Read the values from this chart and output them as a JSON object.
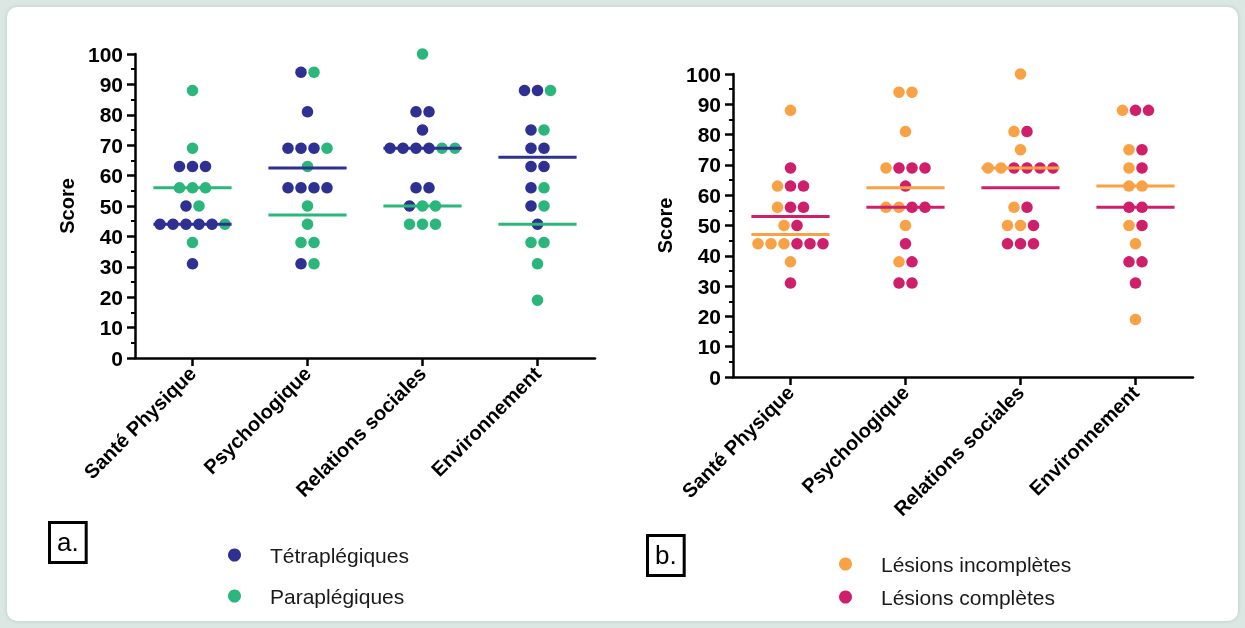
{
  "chart_data": [
    {
      "type": "scatter",
      "ylabel": "Score",
      "categories": [
        "Santé Physique",
        "Psychologique",
        "Relations sociales",
        "Environnement"
      ],
      "ylim": [
        0,
        100
      ],
      "yticks": [
        0,
        {
          "value": 5,
          "label": null
        },
        10,
        {
          "value": 15,
          "label": null
        },
        20,
        {
          "value": 25,
          "label": null
        },
        30,
        {
          "value": 35,
          "label": null
        },
        40,
        {
          "value": 45,
          "label": null
        },
        50,
        {
          "value": 55,
          "label": null
        },
        60,
        {
          "value": 65,
          "label": null
        },
        70,
        {
          "value": 75,
          "label": null
        },
        80,
        {
          "value": 85,
          "label": null
        },
        90,
        {
          "value": 95,
          "label": null
        },
        100
      ],
      "legend": "bottom",
      "marker": "circle",
      "annotations": [
        "a."
      ],
      "series": [
        {
          "name": "Tétraplégiques",
          "color": "#2e3192",
          "x": [
            "Santé Physique",
            "Santé Physique",
            "Santé Physique",
            "Santé Physique",
            "Santé Physique",
            "Santé Physique",
            "Santé Physique",
            "Santé Physique",
            "Santé Physique",
            "Santé Physique",
            "Psychologique",
            "Psychologique",
            "Psychologique",
            "Psychologique",
            "Psychologique",
            "Psychologique",
            "Psychologique",
            "Psychologique",
            "Psychologique",
            "Psychologique",
            "Relations sociales",
            "Relations sociales",
            "Relations sociales",
            "Relations sociales",
            "Relations sociales",
            "Relations sociales",
            "Relations sociales",
            "Relations sociales",
            "Relations sociales",
            "Relations sociales",
            "Environnement",
            "Environnement",
            "Environnement",
            "Environnement",
            "Environnement",
            "Environnement",
            "Environnement",
            "Environnement",
            "Environnement",
            "Environnement"
          ],
          "values": [
            63,
            63,
            63,
            50,
            44,
            44,
            44,
            44,
            44,
            31,
            94,
            81,
            69,
            69,
            69,
            56,
            56,
            56,
            56,
            31,
            81,
            81,
            75,
            69,
            69,
            69,
            69,
            56,
            56,
            50,
            88,
            88,
            75,
            69,
            69,
            63,
            63,
            56,
            50,
            44
          ]
        },
        {
          "name": "Paraplégiques",
          "color": "#2bb67b",
          "x": [
            "Santé Physique",
            "Santé Physique",
            "Santé Physique",
            "Santé Physique",
            "Santé Physique",
            "Santé Physique",
            "Santé Physique",
            "Santé Physique",
            "Psychologique",
            "Psychologique",
            "Psychologique",
            "Psychologique",
            "Psychologique",
            "Psychologique",
            "Psychologique",
            "Psychologique",
            "Relations sociales",
            "Relations sociales",
            "Relations sociales",
            "Relations sociales",
            "Relations sociales",
            "Relations sociales",
            "Relations sociales",
            "Relations sociales",
            "Environnement",
            "Environnement",
            "Environnement",
            "Environnement",
            "Environnement",
            "Environnement",
            "Environnement",
            "Environnement"
          ],
          "values": [
            88,
            69,
            56,
            56,
            56,
            50,
            44,
            38,
            94,
            69,
            63,
            50,
            44,
            38,
            38,
            31,
            100,
            69,
            69,
            50,
            50,
            44,
            44,
            44,
            88,
            75,
            56,
            50,
            38,
            38,
            31,
            19
          ]
        },
        {
          "type": "bar",
          "color": "#2e3192",
          "base": [
            44,
            62.5,
            69,
            66
          ],
          "values": [
            0,
            0,
            0,
            0
          ]
        },
        {
          "type": "bar",
          "color": "#2bb67b",
          "base": [
            56,
            47,
            50,
            44
          ],
          "values": [
            0,
            0,
            0,
            0
          ]
        }
      ]
    },
    {
      "type": "scatter",
      "ylabel": "Score",
      "categories": [
        "Santé Physique",
        "Psychologique",
        "Relations sociales",
        "Environnement"
      ],
      "ylim": [
        0,
        100
      ],
      "yticks": [
        0,
        {
          "value": 5,
          "label": null
        },
        10,
        {
          "value": 15,
          "label": null
        },
        20,
        {
          "value": 25,
          "label": null
        },
        30,
        {
          "value": 35,
          "label": null
        },
        40,
        {
          "value": 45,
          "label": null
        },
        50,
        {
          "value": 55,
          "label": null
        },
        60,
        {
          "value": 65,
          "label": null
        },
        70,
        {
          "value": 75,
          "label": null
        },
        80,
        {
          "value": 85,
          "label": null
        },
        90,
        {
          "value": 95,
          "label": null
        },
        100
      ],
      "legend": "bottom",
      "marker": "circle",
      "annotations": [
        "b."
      ],
      "series": [
        {
          "name": "Lésions incomplètes",
          "color": "#f8a145",
          "x": [
            "Santé Physique",
            "Santé Physique",
            "Santé Physique",
            "Santé Physique",
            "Santé Physique",
            "Santé Physique",
            "Santé Physique",
            "Santé Physique",
            "Psychologique",
            "Psychologique",
            "Psychologique",
            "Psychologique",
            "Psychologique",
            "Psychologique",
            "Psychologique",
            "Psychologique",
            "Relations sociales",
            "Relations sociales",
            "Relations sociales",
            "Relations sociales",
            "Relations sociales",
            "Relations sociales",
            "Relations sociales",
            "Relations sociales",
            "Environnement",
            "Environnement",
            "Environnement",
            "Environnement",
            "Environnement",
            "Environnement",
            "Environnement",
            "Environnement"
          ],
          "values": [
            88,
            63,
            56,
            50,
            44,
            44,
            44,
            38,
            94,
            94,
            81,
            69,
            56,
            56,
            50,
            38,
            100,
            81,
            75,
            69,
            69,
            56,
            50,
            50,
            88,
            75,
            69,
            63,
            63,
            50,
            44,
            19
          ]
        },
        {
          "name": "Lésions complètes",
          "color": "#cf1f6b",
          "x": [
            "Santé Physique",
            "Santé Physique",
            "Santé Physique",
            "Santé Physique",
            "Santé Physique",
            "Santé Physique",
            "Santé Physique",
            "Santé Physique",
            "Santé Physique",
            "Santé Physique",
            "Psychologique",
            "Psychologique",
            "Psychologique",
            "Psychologique",
            "Psychologique",
            "Psychologique",
            "Psychologique",
            "Psychologique",
            "Psychologique",
            "Psychologique",
            "Relations sociales",
            "Relations sociales",
            "Relations sociales",
            "Relations sociales",
            "Relations sociales",
            "Relations sociales",
            "Relations sociales",
            "Relations sociales",
            "Relations sociales",
            "Relations sociales",
            "Environnement",
            "Environnement",
            "Environnement",
            "Environnement",
            "Environnement",
            "Environnement",
            "Environnement",
            "Environnement",
            "Environnement",
            "Environnement"
          ],
          "values": [
            69,
            63,
            63,
            56,
            56,
            50,
            44,
            44,
            44,
            31,
            69,
            69,
            69,
            63,
            56,
            56,
            44,
            38,
            31,
            31,
            81,
            69,
            69,
            69,
            69,
            56,
            50,
            44,
            44,
            44,
            88,
            88,
            75,
            69,
            56,
            56,
            50,
            38,
            38,
            31
          ]
        },
        {
          "type": "bar",
          "color": "#f8a145",
          "base": [
            47,
            62.5,
            69,
            63
          ],
          "values": [
            0,
            0,
            0,
            0
          ]
        },
        {
          "type": "bar",
          "color": "#cf1f6b",
          "base": [
            53,
            56,
            62.5,
            56
          ],
          "values": [
            0,
            0,
            0,
            0
          ]
        }
      ]
    }
  ]
}
